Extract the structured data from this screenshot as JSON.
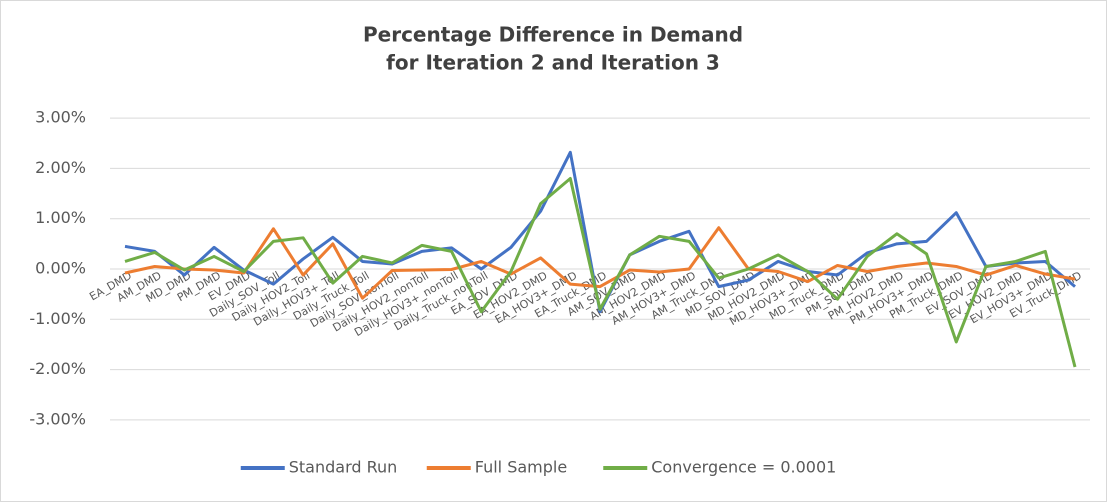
{
  "chart_data": {
    "type": "line",
    "title": [
      "Percentage Difference in Demand",
      "for Iteration 2 and Iteration 3"
    ],
    "categories": [
      "EA_DMD",
      "AM_DMD",
      "MD_DMD",
      "PM_DMD",
      "EV_DMD",
      "Daily_SOV_Toll",
      "Daily_HOV2_Toll",
      "Daily_HOV3+_Toll",
      "Daily_Truck_Toll",
      "Daily_SOV_nonToll",
      "Daily_HOV2_nonToll",
      "Daily_HOV3+_nonToll",
      "Daily_Truck_nonToll",
      "EA_SOV_DMD",
      "EA_HOV2_DMD",
      "EA_HOV3+_DMD",
      "EA_Truck_DMD",
      "AM_SOV_DMD",
      "AM_HOV2_DMD",
      "AM_HOV3+_DMD",
      "AM_Truck_DMD",
      "MD_SOV_DMD",
      "MD_HOV2_DMD",
      "MD_HOV3+_DMD",
      "MD_Truck_DMD",
      "PM_SOV_DMD",
      "PM_HOV2_DMD",
      "PM_HOV3+_DMD",
      "PM_Truck_DMD",
      "EV_SOV_DMD",
      "EV_HOV2_DMD",
      "EV_HOV3+_DMD",
      "EV_Truck_DMD"
    ],
    "series": [
      {
        "name": "Standard Run",
        "color": "#4472c4",
        "values": [
          0.45,
          0.35,
          -0.12,
          0.43,
          -0.02,
          -0.3,
          0.2,
          0.63,
          0.15,
          0.1,
          0.35,
          0.42,
          0.0,
          0.43,
          1.15,
          2.32,
          -0.85,
          0.28,
          0.55,
          0.75,
          -0.35,
          -0.22,
          0.15,
          -0.05,
          -0.12,
          0.32,
          0.5,
          0.55,
          1.12,
          0.05,
          0.12,
          0.15,
          -0.35
        ]
      },
      {
        "name": "Full Sample",
        "color": "#ed7d31",
        "values": [
          -0.08,
          0.05,
          0.0,
          -0.02,
          -0.08,
          0.8,
          -0.12,
          0.5,
          -0.58,
          -0.03,
          -0.02,
          -0.01,
          0.15,
          -0.1,
          0.22,
          -0.3,
          -0.35,
          -0.02,
          -0.06,
          0.0,
          0.82,
          0.0,
          -0.05,
          -0.25,
          0.07,
          -0.05,
          0.05,
          0.12,
          0.05,
          -0.12,
          0.07,
          -0.1,
          -0.2
        ]
      },
      {
        "name": "Convergence = 0.0001",
        "color": "#70ad47",
        "values": [
          0.15,
          0.33,
          -0.02,
          0.25,
          -0.05,
          0.55,
          0.62,
          -0.28,
          0.25,
          0.12,
          0.47,
          0.35,
          -0.85,
          -0.05,
          1.3,
          1.8,
          -0.8,
          0.28,
          0.65,
          0.55,
          -0.18,
          0.0,
          0.28,
          -0.05,
          -0.6,
          0.25,
          0.7,
          0.3,
          -1.45,
          0.05,
          0.15,
          0.35,
          -1.95
        ]
      }
    ],
    "ylim": [
      -3.5,
      3.5
    ],
    "yticks": [
      {
        "value": -3,
        "label": "-3.00%"
      },
      {
        "value": -2,
        "label": "-2.00%"
      },
      {
        "value": -1,
        "label": "-1.00%"
      },
      {
        "value": 0,
        "label": "0.00%"
      },
      {
        "value": 1,
        "label": "1.00%"
      },
      {
        "value": 2,
        "label": "2.00%"
      },
      {
        "value": 3,
        "label": "3.00%"
      }
    ],
    "grid": true,
    "legend": "bottom"
  }
}
